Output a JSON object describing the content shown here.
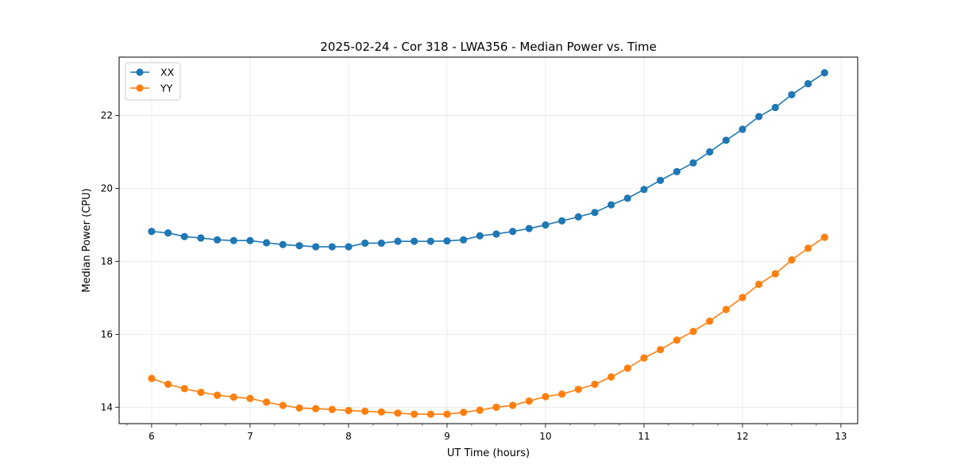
{
  "chart_data": {
    "type": "line",
    "title": "2025-02-24 - Cor 318 - LWA356 - Median Power vs. Time",
    "xlabel": "UT Time (hours)",
    "ylabel": "Median Power (CPU)",
    "xlim": [
      5.67,
      13.17
    ],
    "ylim": [
      13.55,
      23.6
    ],
    "xticks": [
      6,
      7,
      8,
      9,
      10,
      11,
      12,
      13
    ],
    "yticks": [
      14,
      16,
      18,
      20,
      22
    ],
    "x_minor_step": 0.25,
    "grid": true,
    "legend_position": "top-left",
    "x": [
      6.0,
      6.1667,
      6.3333,
      6.5,
      6.6667,
      6.8333,
      7.0,
      7.1667,
      7.3333,
      7.5,
      7.6667,
      7.8333,
      8.0,
      8.1667,
      8.3333,
      8.5,
      8.6667,
      8.8333,
      9.0,
      9.1667,
      9.3333,
      9.5,
      9.6667,
      9.8333,
      10.0,
      10.1667,
      10.3333,
      10.5,
      10.6667,
      10.8333,
      11.0,
      11.1667,
      11.3333,
      11.5,
      11.6667,
      11.8333,
      12.0,
      12.1667,
      12.3333,
      12.5,
      12.6667,
      12.8333
    ],
    "series": [
      {
        "name": "XX",
        "color": "#1f77b4",
        "values": [
          18.82,
          18.78,
          18.68,
          18.64,
          18.59,
          18.57,
          18.57,
          18.51,
          18.46,
          18.43,
          18.4,
          18.4,
          18.4,
          18.5,
          18.5,
          18.55,
          18.55,
          18.55,
          18.56,
          18.59,
          18.7,
          18.75,
          18.82,
          18.9,
          19.0,
          19.11,
          19.22,
          19.34,
          19.55,
          19.73,
          19.97,
          20.22,
          20.46,
          20.7,
          21.0,
          21.32,
          21.62,
          21.97,
          22.22,
          22.57,
          22.87,
          23.17
        ]
      },
      {
        "name": "YY",
        "color": "#ff7f0e",
        "values": [
          14.79,
          14.63,
          14.51,
          14.41,
          14.33,
          14.28,
          14.24,
          14.14,
          14.05,
          13.98,
          13.96,
          13.94,
          13.91,
          13.89,
          13.87,
          13.84,
          13.81,
          13.81,
          13.81,
          13.86,
          13.92,
          14.0,
          14.05,
          14.17,
          14.29,
          14.36,
          14.49,
          14.63,
          14.83,
          15.07,
          15.35,
          15.58,
          15.84,
          16.08,
          16.36,
          16.68,
          17.01,
          17.37,
          17.66,
          18.04,
          18.36,
          18.66
        ]
      }
    ]
  }
}
